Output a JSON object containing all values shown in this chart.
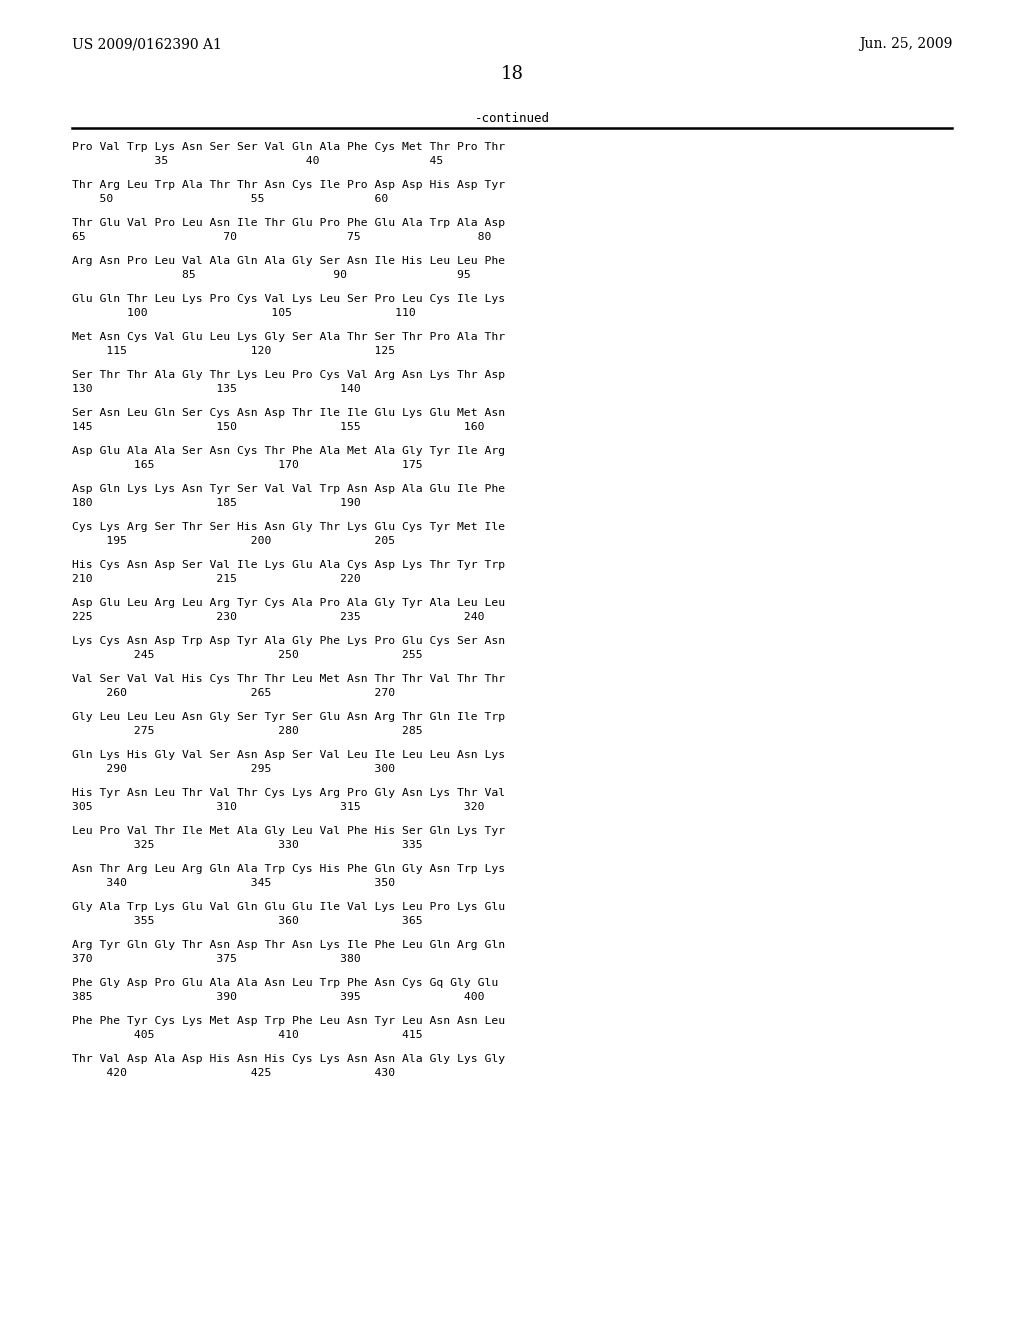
{
  "header_left": "US 2009/0162390 A1",
  "header_right": "Jun. 25, 2009",
  "page_number": "18",
  "continued_label": "-continued",
  "background_color": "#ffffff",
  "text_color": "#000000",
  "seq_font_size": 8.2,
  "header_font_size": 10.0,
  "page_num_font_size": 13.0,
  "sequence_pairs": [
    [
      "Pro Val Trp Lys Asn Ser Ser Val Gln Ala Phe Cys Met Thr Pro Thr",
      "            35                    40                45"
    ],
    [
      "Thr Arg Leu Trp Ala Thr Thr Asn Cys Ile Pro Asp Asp His Asp Tyr",
      "    50                    55                60"
    ],
    [
      "Thr Glu Val Pro Leu Asn Ile Thr Glu Pro Phe Glu Ala Trp Ala Asp",
      "65                    70                75                 80"
    ],
    [
      "Arg Asn Pro Leu Val Ala Gln Ala Gly Ser Asn Ile His Leu Leu Phe",
      "                85                    90                95"
    ],
    [
      "Glu Gln Thr Leu Lys Pro Cys Val Lys Leu Ser Pro Leu Cys Ile Lys",
      "        100                  105               110"
    ],
    [
      "Met Asn Cys Val Glu Leu Lys Gly Ser Ala Thr Ser Thr Pro Ala Thr",
      "     115                  120               125"
    ],
    [
      "Ser Thr Thr Ala Gly Thr Lys Leu Pro Cys Val Arg Asn Lys Thr Asp",
      "130                  135               140"
    ],
    [
      "Ser Asn Leu Gln Ser Cys Asn Asp Thr Ile Ile Glu Lys Glu Met Asn",
      "145                  150               155               160"
    ],
    [
      "Asp Glu Ala Ala Ser Asn Cys Thr Phe Ala Met Ala Gly Tyr Ile Arg",
      "         165                  170               175"
    ],
    [
      "Asp Gln Lys Lys Asn Tyr Ser Val Val Trp Asn Asp Ala Glu Ile Phe",
      "180                  185               190"
    ],
    [
      "Cys Lys Arg Ser Thr Ser His Asn Gly Thr Lys Glu Cys Tyr Met Ile",
      "     195                  200               205"
    ],
    [
      "His Cys Asn Asp Ser Val Ile Lys Glu Ala Cys Asp Lys Thr Tyr Trp",
      "210                  215               220"
    ],
    [
      "Asp Glu Leu Arg Leu Arg Tyr Cys Ala Pro Ala Gly Tyr Ala Leu Leu",
      "225                  230               235               240"
    ],
    [
      "Lys Cys Asn Asp Trp Asp Tyr Ala Gly Phe Lys Pro Glu Cys Ser Asn",
      "         245                  250               255"
    ],
    [
      "Val Ser Val Val His Cys Thr Thr Leu Met Asn Thr Thr Val Thr Thr",
      "     260                  265               270"
    ],
    [
      "Gly Leu Leu Leu Asn Gly Ser Tyr Ser Glu Asn Arg Thr Gln Ile Trp",
      "         275                  280               285"
    ],
    [
      "Gln Lys His Gly Val Ser Asn Asp Ser Val Leu Ile Leu Leu Asn Lys",
      "     290                  295               300"
    ],
    [
      "His Tyr Asn Leu Thr Val Thr Cys Lys Arg Pro Gly Asn Lys Thr Val",
      "305                  310               315               320"
    ],
    [
      "Leu Pro Val Thr Ile Met Ala Gly Leu Val Phe His Ser Gln Lys Tyr",
      "         325                  330               335"
    ],
    [
      "Asn Thr Arg Leu Arg Gln Ala Trp Cys His Phe Gln Gly Asn Trp Lys",
      "     340                  345               350"
    ],
    [
      "Gly Ala Trp Lys Glu Val Gln Glu Glu Ile Val Lys Leu Pro Lys Glu",
      "         355                  360               365"
    ],
    [
      "Arg Tyr Gln Gly Thr Asn Asp Thr Asn Lys Ile Phe Leu Gln Arg Gln",
      "370                  375               380"
    ],
    [
      "Phe Gly Asp Pro Glu Ala Ala Asn Leu Trp Phe Asn Cys Gq Gly Glu",
      "385                  390               395               400"
    ],
    [
      "Phe Phe Tyr Cys Lys Met Asp Trp Phe Leu Asn Tyr Leu Asn Asn Leu",
      "         405                  410               415"
    ],
    [
      "Thr Val Asp Ala Asp His Asn His Cys Lys Asn Asn Ala Gly Lys Gly",
      "     420                  425               430"
    ]
  ]
}
